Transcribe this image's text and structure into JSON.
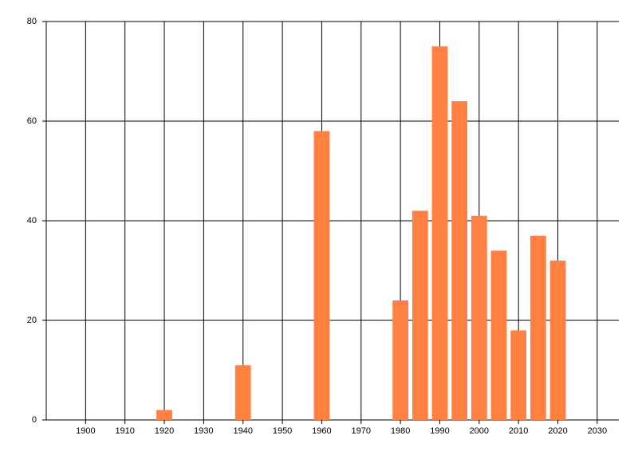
{
  "chart_data": {
    "type": "bar",
    "x": [
      1920,
      1940,
      1960,
      1980,
      1985,
      1990,
      1995,
      2000,
      2005,
      2010,
      2015,
      2020
    ],
    "values": [
      2,
      11,
      58,
      24,
      42,
      75,
      64,
      41,
      34,
      18,
      37,
      32
    ],
    "color": "#ff8040",
    "xlim": [
      1890,
      2035.5
    ],
    "xticks": [
      1900,
      1910,
      1920,
      1930,
      1940,
      1950,
      1960,
      1970,
      1980,
      1990,
      2000,
      2010,
      2020,
      2030
    ],
    "ylim": [
      0,
      80
    ],
    "yticks": [
      0,
      20,
      40,
      60,
      80
    ],
    "grid": true
  }
}
